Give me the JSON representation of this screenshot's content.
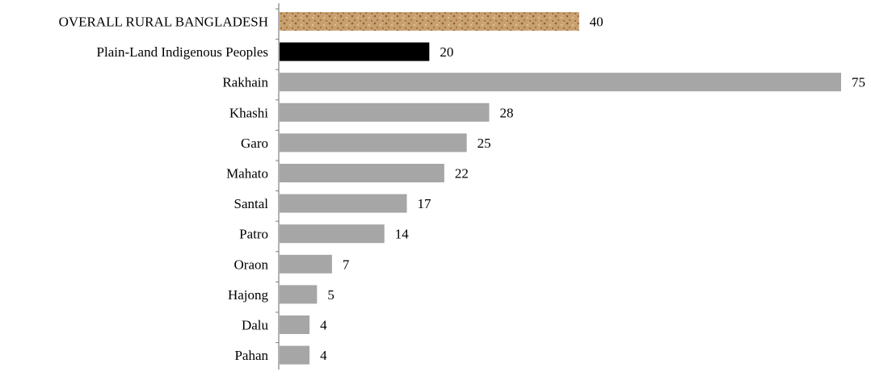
{
  "chart_data": {
    "type": "bar",
    "orientation": "horizontal",
    "title": "",
    "xlabel": "",
    "ylabel": "",
    "categories": [
      "OVERALL RURAL BANGLADESH",
      "Plain-Land Indigenous Peoples",
      "Rakhain",
      "Khashi",
      "Garo",
      "Mahato",
      "Santal",
      "Patro",
      "Oraon",
      "Hajong",
      "Dalu",
      "Pahan"
    ],
    "values": [
      40,
      20,
      75,
      28,
      25,
      22,
      17,
      14,
      7,
      5,
      4,
      4
    ],
    "xlim": [
      0,
      75
    ],
    "grid": false,
    "legend": "none",
    "data_labels": true,
    "colors": {
      "overall": "#c49a6c",
      "overall_texture": "#9b6a3f",
      "plain_land": "#000000",
      "groups": "#a6a6a6",
      "axis": "#808080"
    }
  }
}
